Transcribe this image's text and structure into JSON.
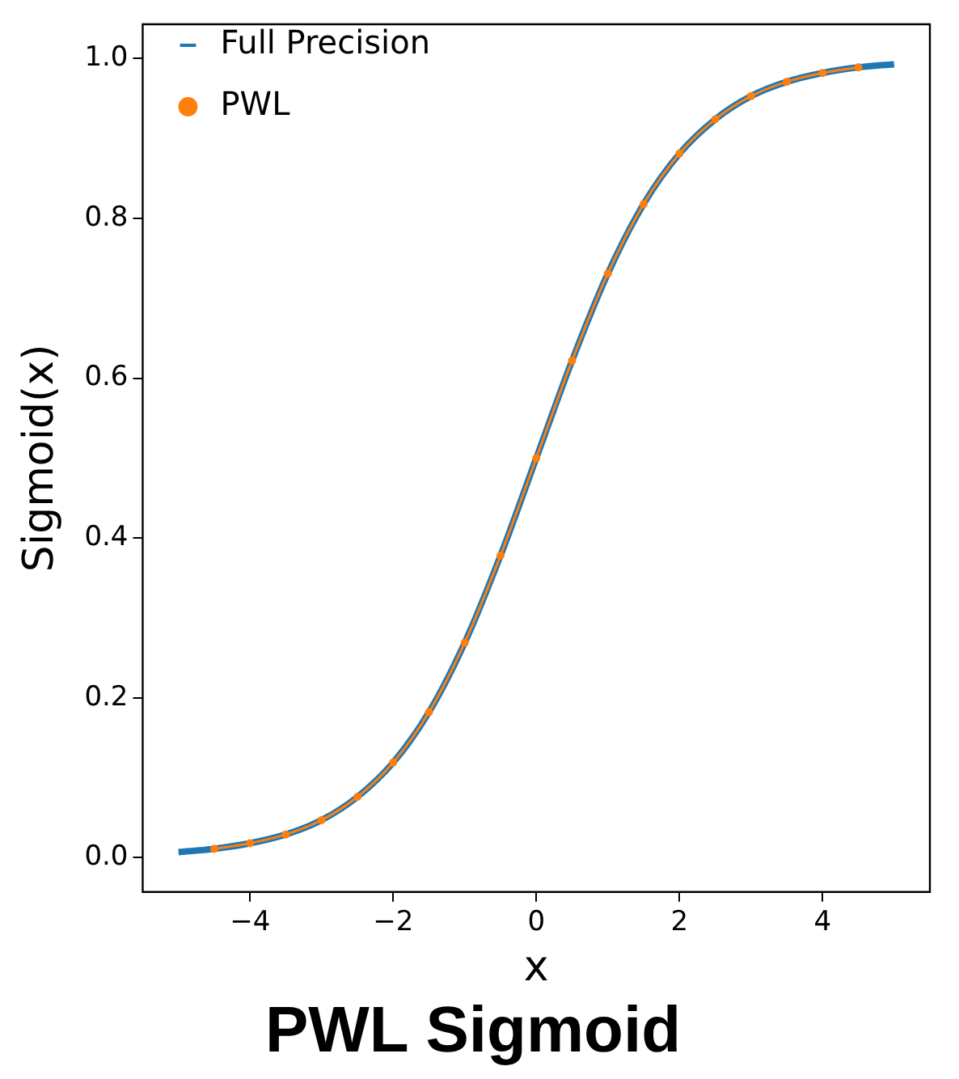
{
  "chart_data": {
    "type": "line",
    "title": "PWL Sigmoid",
    "xlabel": "x",
    "ylabel": "Sigmoid(x)",
    "xlim": [
      -5.5,
      5.5
    ],
    "xticks": [
      {
        "value": -4,
        "label": "−4"
      },
      {
        "value": -2,
        "label": "−2"
      },
      0,
      2,
      4
    ],
    "ylim": [
      -0.043,
      1.043
    ],
    "yticks": [
      {
        "value": 0,
        "label": "0.0"
      },
      {
        "value": 0.2,
        "label": "0.2"
      },
      {
        "value": 0.4,
        "label": "0.4"
      },
      {
        "value": 0.6,
        "label": "0.6"
      },
      {
        "value": 0.8,
        "label": "0.8"
      },
      {
        "value": 1,
        "label": "1.0"
      }
    ],
    "legend": "top left",
    "grid": false,
    "series": [
      {
        "name": "Full Precision",
        "color": "#1f77b4",
        "marker": "none",
        "x": [
          -5,
          -4.5,
          -4,
          -3.5,
          -3,
          -2.5,
          -2,
          -1.5,
          -1,
          -0.5,
          0,
          0.5,
          1,
          1.5,
          2,
          2.5,
          3,
          3.5,
          4,
          4.5,
          5
        ],
        "values": [
          0.007,
          0.011,
          0.018,
          0.029,
          0.047,
          0.076,
          0.119,
          0.182,
          0.269,
          0.378,
          0.5,
          0.622,
          0.731,
          0.818,
          0.881,
          0.924,
          0.953,
          0.971,
          0.982,
          0.989,
          0.993
        ]
      },
      {
        "name": "PWL",
        "color": "#ff7f0e",
        "marker": "circle",
        "x": [
          -4.5,
          -4,
          -3.5,
          -3,
          -2.5,
          -2,
          -1.5,
          -1,
          -0.5,
          0,
          0.5,
          1,
          1.5,
          2,
          2.5,
          3,
          3.5,
          4,
          4.5
        ],
        "values": [
          0.011,
          0.018,
          0.029,
          0.047,
          0.076,
          0.119,
          0.182,
          0.269,
          0.378,
          0.5,
          0.622,
          0.731,
          0.818,
          0.881,
          0.924,
          0.953,
          0.971,
          0.982,
          0.989
        ]
      }
    ]
  }
}
